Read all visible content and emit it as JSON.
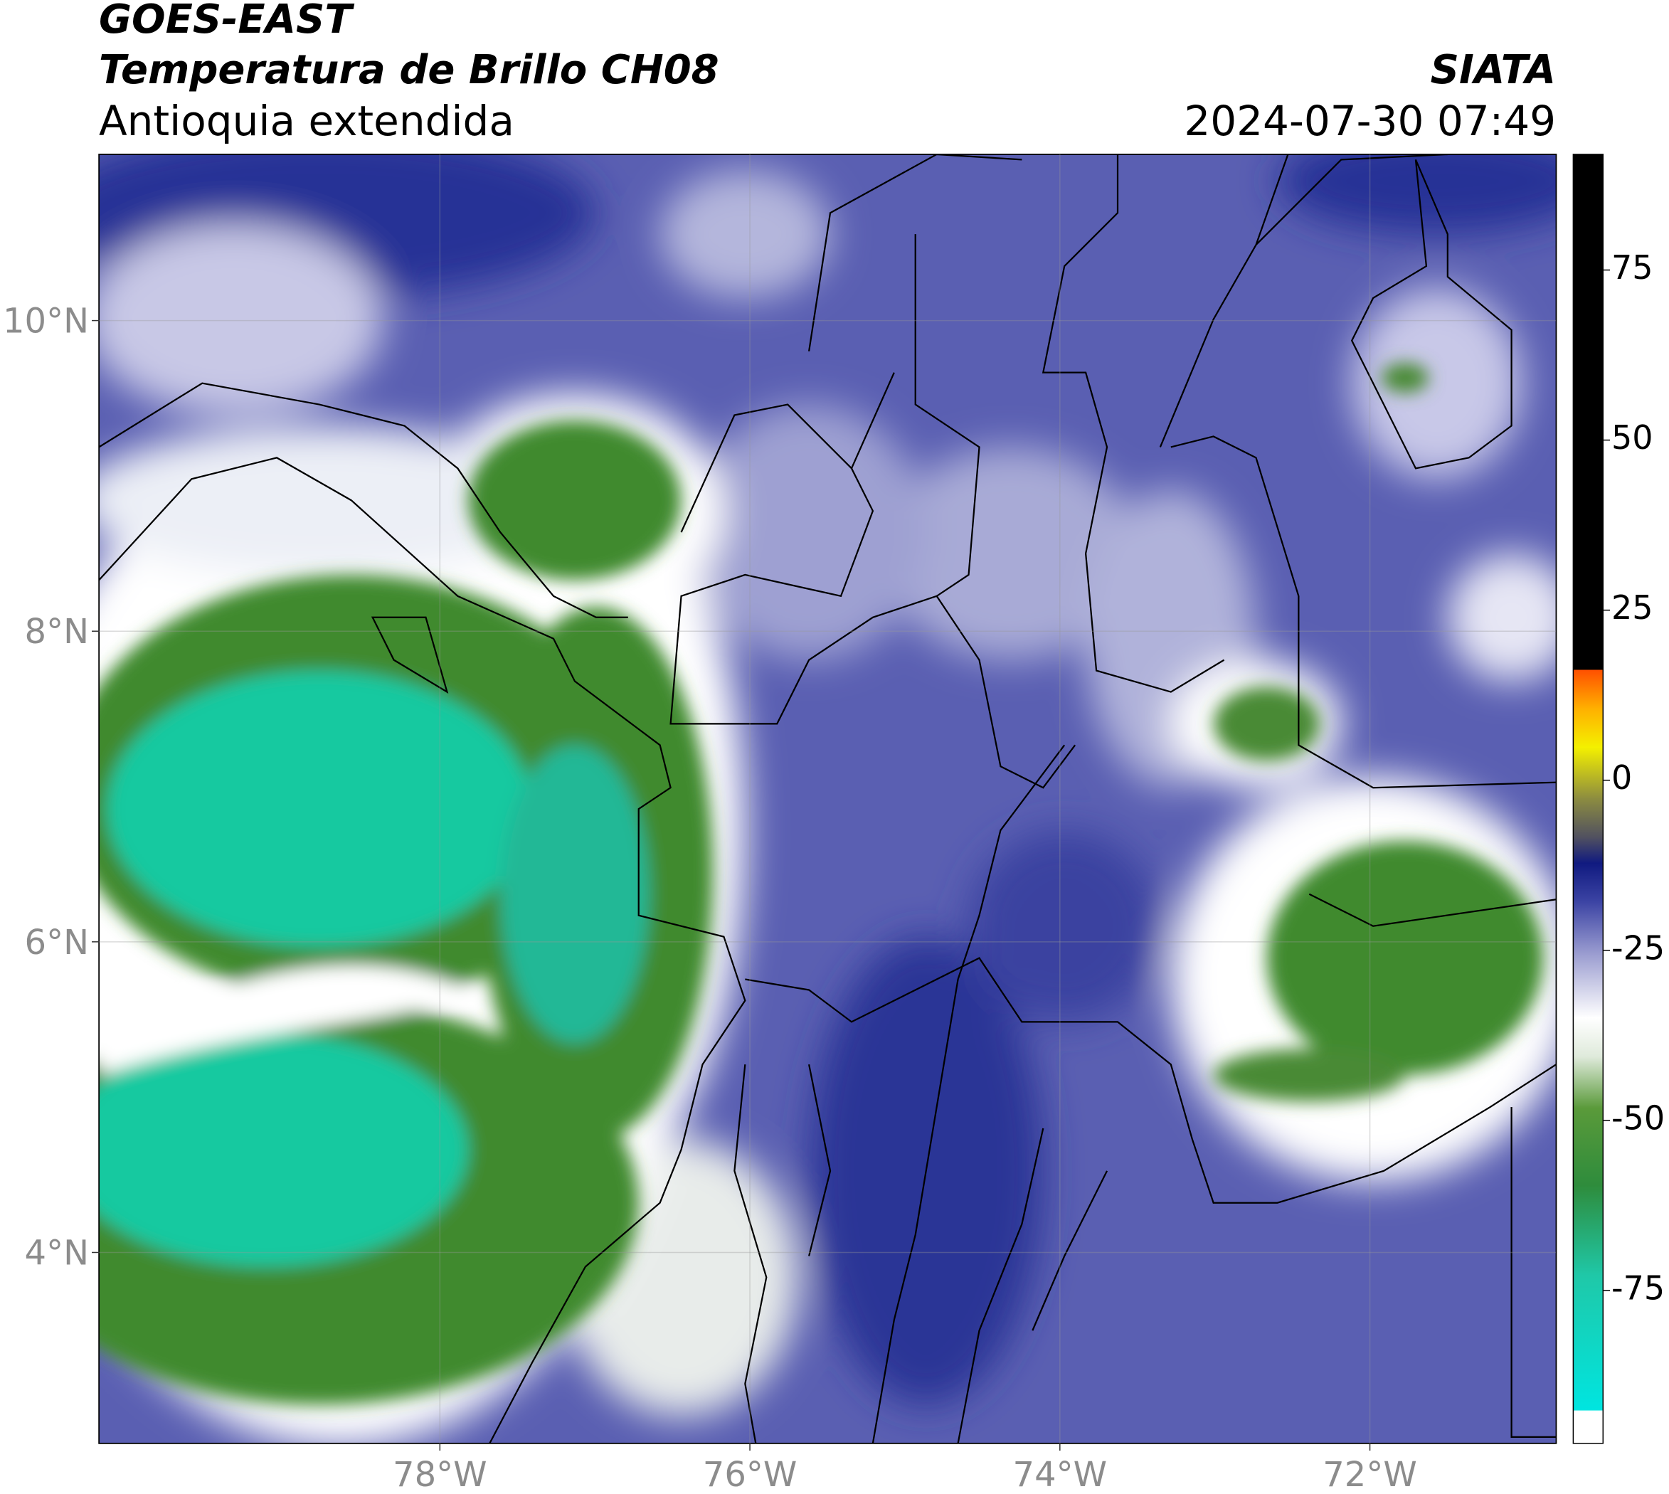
{
  "header": {
    "title": "GOES-EAST",
    "subtitle": "Temperatura de Brillo CH08",
    "region": "Antioquia extendida",
    "source": "SIATA",
    "datetime": "2024-07-30 07:49"
  },
  "map": {
    "xlim": [
      -80.2,
      -70.8
    ],
    "ylim": [
      2.77,
      11.07
    ],
    "xticks": [
      {
        "value": -78,
        "label": "78°W"
      },
      {
        "value": -76,
        "label": "76°W"
      },
      {
        "value": -74,
        "label": "74°W"
      },
      {
        "value": -72,
        "label": "72°W"
      }
    ],
    "yticks": [
      {
        "value": 4,
        "label": "4°N"
      },
      {
        "value": 6,
        "label": "6°N"
      },
      {
        "value": 8,
        "label": "8°N"
      },
      {
        "value": 10,
        "label": "10°N"
      }
    ],
    "grid": true
  },
  "colorbar": {
    "lim": [
      -97.5,
      92
    ],
    "ticks": [
      -75,
      -50,
      -25,
      0,
      25,
      50,
      75
    ]
  }
}
